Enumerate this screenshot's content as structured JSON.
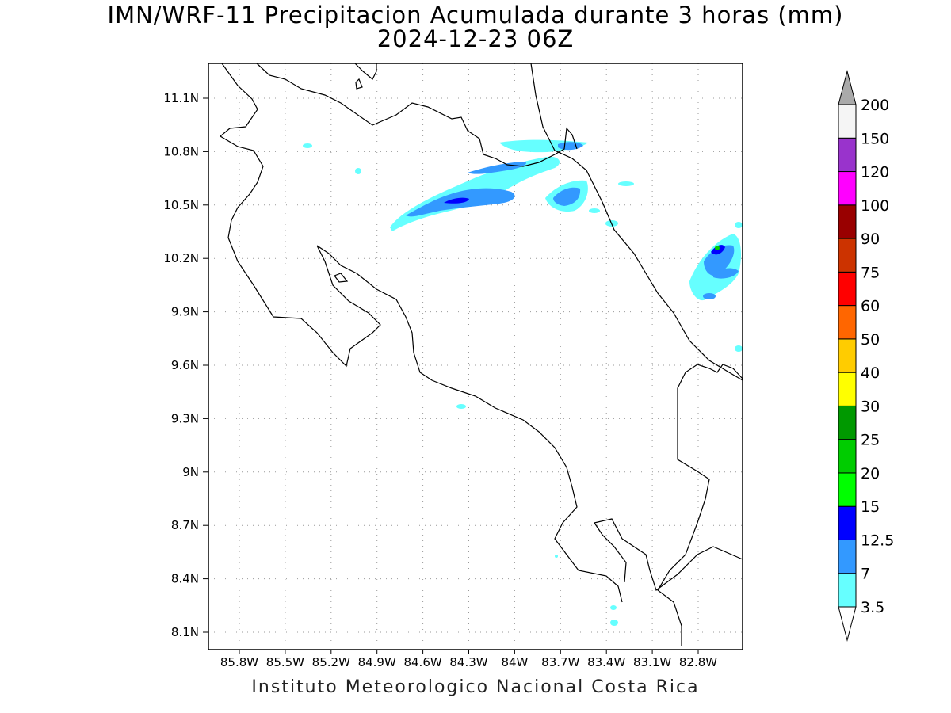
{
  "title": "IMN/WRF-11 Precipitacion Acumulada durante 3 horas (mm)",
  "subtitle": "2024-12-23 06Z",
  "footer": "Instituto Meteorologico Nacional Costa Rica",
  "axes": {
    "lon_ticks": [
      "85.8W",
      "85.5W",
      "85.2W",
      "84.9W",
      "84.6W",
      "84.3W",
      "84W",
      "83.7W",
      "83.4W",
      "83.1W",
      "82.8W"
    ],
    "lat_ticks": [
      "11.1N",
      "10.8N",
      "10.5N",
      "10.2N",
      "9.9N",
      "9.6N",
      "9.3N",
      "9N",
      "8.7N",
      "8.4N",
      "8.1N"
    ]
  },
  "colorbar": {
    "labels": [
      "3.5",
      "7",
      "12.5",
      "15",
      "20",
      "25",
      "30",
      "40",
      "50",
      "60",
      "75",
      "90",
      "100",
      "120",
      "150",
      "200"
    ],
    "colors": [
      "#ffffff",
      "#66ffff",
      "#3399ff",
      "#0000ff",
      "#00ff00",
      "#00cc00",
      "#009900",
      "#ffff00",
      "#ffcc00",
      "#ff6600",
      "#ff0000",
      "#cc3300",
      "#990000",
      "#ff00ff",
      "#9933cc",
      "#f5f5f5",
      "#aaaaaa"
    ]
  }
}
